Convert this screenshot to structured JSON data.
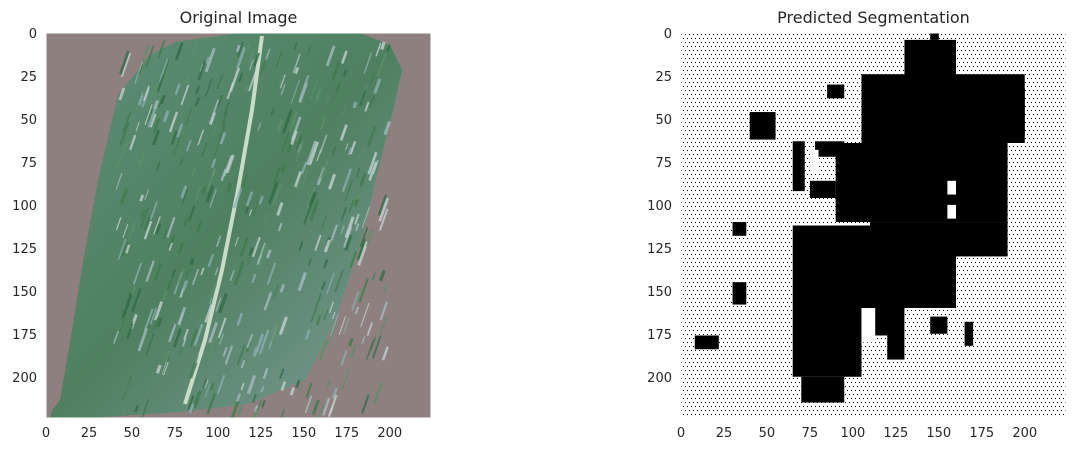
{
  "panels": [
    {
      "title": "Original Image",
      "xticks": [
        0,
        25,
        50,
        75,
        100,
        125,
        150,
        175,
        200
      ],
      "yticks": [
        0,
        25,
        50,
        75,
        100,
        125,
        150,
        175,
        200
      ],
      "colors": {
        "bg": "#8c7e7d",
        "leaf": "#6f8f8c",
        "green": "#3f7a4c",
        "pale": "#b7c6c6",
        "midrib": "#cfe0cf"
      }
    },
    {
      "title": "Predicted Segmentation",
      "xticks": [
        0,
        25,
        50,
        75,
        100,
        125,
        150,
        175,
        200
      ],
      "yticks": [
        0,
        25,
        50,
        75,
        100,
        125,
        150,
        175,
        200
      ],
      "colors": {
        "mask": "#000000",
        "background": "#ffffff"
      }
    }
  ],
  "chart_data": [
    {
      "type": "image",
      "title": "Original Image",
      "xlim": [
        0,
        224
      ],
      "ylim": [
        224,
        0
      ],
      "x_ticks": [
        0,
        25,
        50,
        75,
        100,
        125,
        150,
        175,
        200
      ],
      "y_ticks": [
        0,
        25,
        50,
        75,
        100,
        125,
        150,
        175,
        200
      ],
      "content": "photo of a leaf on a brown background"
    },
    {
      "type": "heatmap",
      "title": "Predicted Segmentation",
      "xlim": [
        0,
        224
      ],
      "ylim": [
        224,
        0
      ],
      "x_ticks": [
        0,
        25,
        50,
        75,
        100,
        125,
        150,
        175,
        200
      ],
      "y_ticks": [
        0,
        25,
        50,
        75,
        100,
        125,
        150,
        175,
        200
      ],
      "colormap": "gray_r",
      "mask_regions": [
        {
          "x": [
            145,
            150
          ],
          "y": [
            0,
            4
          ]
        },
        {
          "x": [
            130,
            160
          ],
          "y": [
            4,
            28
          ]
        },
        {
          "x": [
            105,
            200
          ],
          "y": [
            24,
            64
          ]
        },
        {
          "x": [
            160,
            200
          ],
          "y": [
            32,
            60
          ]
        },
        {
          "x": [
            85,
            95
          ],
          "y": [
            30,
            38
          ]
        },
        {
          "x": [
            40,
            55
          ],
          "y": [
            46,
            62
          ]
        },
        {
          "x": [
            65,
            72
          ],
          "y": [
            63,
            92
          ]
        },
        {
          "x": [
            78,
            95
          ],
          "y": [
            63,
            72
          ]
        },
        {
          "x": [
            90,
            190
          ],
          "y": [
            64,
            110
          ]
        },
        {
          "x": [
            75,
            90
          ],
          "y": [
            86,
            96
          ]
        },
        {
          "x": [
            110,
            190
          ],
          "y": [
            110,
            130
          ]
        },
        {
          "x": [
            65,
            160
          ],
          "y": [
            112,
            160
          ]
        },
        {
          "x": [
            65,
            105
          ],
          "y": [
            160,
            200
          ]
        },
        {
          "x": [
            105,
            130
          ],
          "y": [
            160,
            176
          ]
        },
        {
          "x": [
            120,
            130
          ],
          "y": [
            176,
            190
          ]
        },
        {
          "x": [
            145,
            155
          ],
          "y": [
            165,
            175
          ]
        },
        {
          "x": [
            165,
            170
          ],
          "y": [
            168,
            182
          ]
        },
        {
          "x": [
            30,
            38
          ],
          "y": [
            110,
            118
          ]
        },
        {
          "x": [
            30,
            38
          ],
          "y": [
            145,
            158
          ]
        },
        {
          "x": [
            8,
            22
          ],
          "y": [
            176,
            184
          ]
        },
        {
          "x": [
            70,
            95
          ],
          "y": [
            200,
            215
          ]
        }
      ],
      "holes": [
        {
          "x": [
            75,
            80
          ],
          "y": [
            68,
            82
          ]
        },
        {
          "x": [
            155,
            160
          ],
          "y": [
            86,
            94
          ]
        },
        {
          "x": [
            155,
            160
          ],
          "y": [
            100,
            108
          ]
        },
        {
          "x": [
            105,
            113
          ],
          "y": [
            160,
            180
          ]
        }
      ]
    }
  ]
}
